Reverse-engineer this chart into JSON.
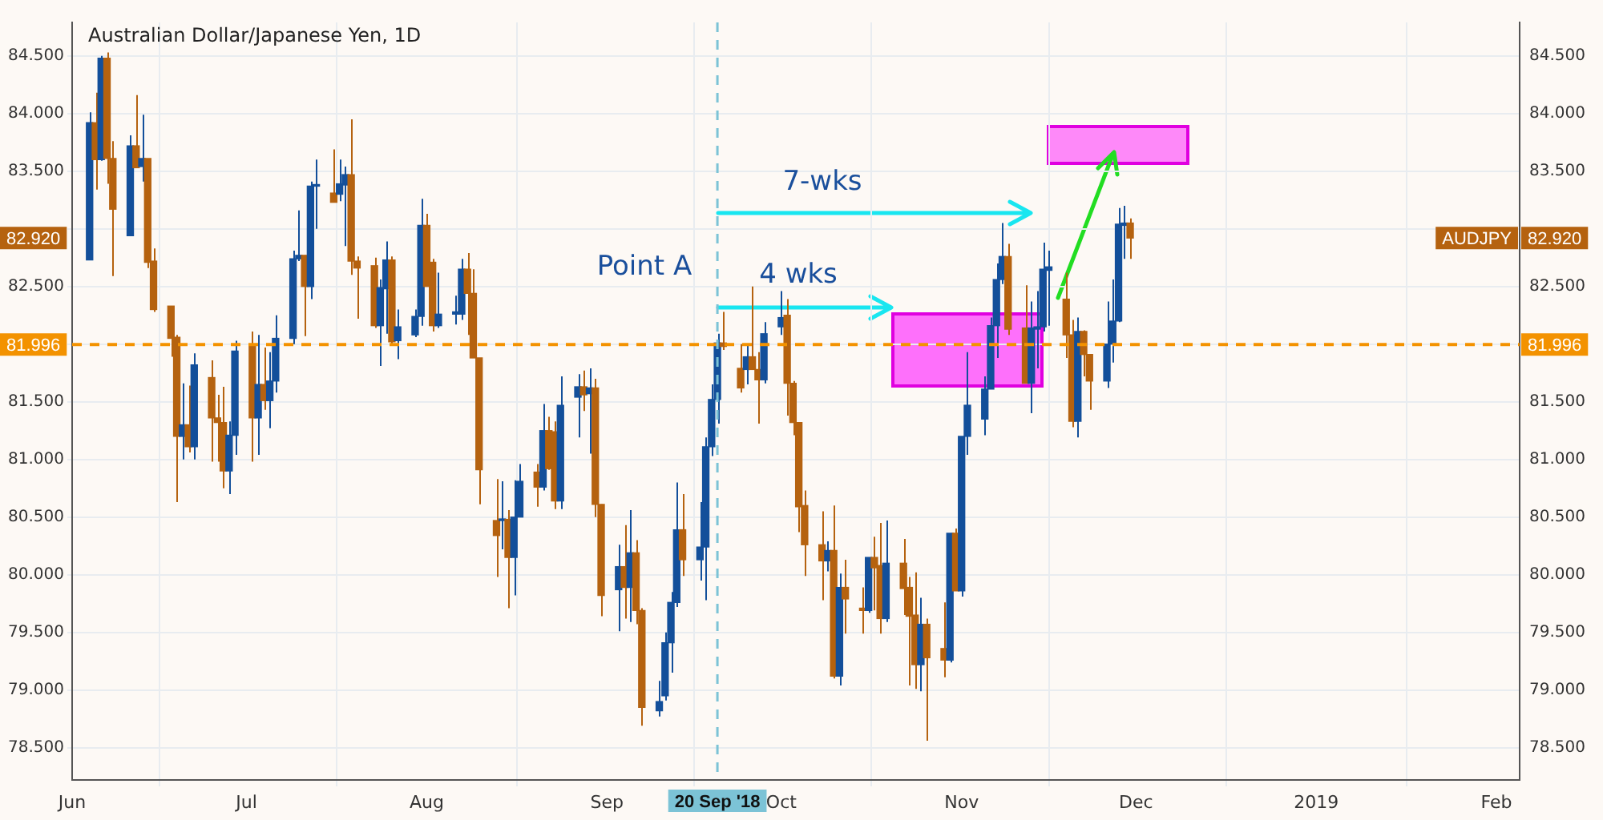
{
  "chart_data": {
    "type": "candlestick",
    "title": "Australian Dollar/Japanese Yen, 1D",
    "x": [
      "2018-06-04",
      "2018-06-05",
      "2018-06-06",
      "2018-06-07",
      "2018-06-08",
      "2018-06-11",
      "2018-06-12",
      "2018-06-13",
      "2018-06-14",
      "2018-06-15",
      "2018-06-18",
      "2018-06-19",
      "2018-06-20",
      "2018-06-21",
      "2018-06-22",
      "2018-06-25",
      "2018-06-26",
      "2018-06-27",
      "2018-06-28",
      "2018-06-29",
      "2018-07-02",
      "2018-07-03",
      "2018-07-04",
      "2018-07-05",
      "2018-07-06",
      "2018-07-09",
      "2018-07-10",
      "2018-07-11",
      "2018-07-12",
      "2018-07-13",
      "2018-07-16",
      "2018-07-17",
      "2018-07-18",
      "2018-07-19",
      "2018-07-20",
      "2018-07-23",
      "2018-07-24",
      "2018-07-25",
      "2018-07-26",
      "2018-07-27",
      "2018-07-30",
      "2018-07-31",
      "2018-08-01",
      "2018-08-02",
      "2018-08-03",
      "2018-08-06",
      "2018-08-07",
      "2018-08-08",
      "2018-08-09",
      "2018-08-10",
      "2018-08-13",
      "2018-08-14",
      "2018-08-15",
      "2018-08-16",
      "2018-08-17",
      "2018-08-20",
      "2018-08-21",
      "2018-08-22",
      "2018-08-23",
      "2018-08-24",
      "2018-08-27",
      "2018-08-28",
      "2018-08-29",
      "2018-08-30",
      "2018-08-31",
      "2018-09-03",
      "2018-09-04",
      "2018-09-05",
      "2018-09-06",
      "2018-09-07",
      "2018-09-10",
      "2018-09-11",
      "2018-09-12",
      "2018-09-13",
      "2018-09-14",
      "2018-09-17",
      "2018-09-18",
      "2018-09-19",
      "2018-09-20",
      "2018-09-21",
      "2018-09-24",
      "2018-09-25",
      "2018-09-26",
      "2018-09-27",
      "2018-09-28",
      "2018-10-01",
      "2018-10-02",
      "2018-10-03",
      "2018-10-04",
      "2018-10-05",
      "2018-10-08",
      "2018-10-09",
      "2018-10-10",
      "2018-10-11",
      "2018-10-12",
      "2018-10-15",
      "2018-10-16",
      "2018-10-17",
      "2018-10-18",
      "2018-10-19",
      "2018-10-22",
      "2018-10-23",
      "2018-10-24",
      "2018-10-25",
      "2018-10-26",
      "2018-10-29",
      "2018-10-30",
      "2018-10-31",
      "2018-11-01",
      "2018-11-02",
      "2018-11-05",
      "2018-11-06",
      "2018-11-07",
      "2018-11-08",
      "2018-11-09",
      "2018-11-12",
      "2018-11-13",
      "2018-11-14",
      "2018-11-15",
      "2018-11-16",
      "2018-11-19",
      "2018-11-20",
      "2018-11-21",
      "2018-11-22",
      "2018-11-23",
      "2018-11-26",
      "2018-11-27",
      "2018-11-28",
      "2018-11-29",
      "2018-11-30"
    ],
    "ohlc": [
      [
        82.73,
        84.01,
        82.73,
        83.92
      ],
      [
        83.92,
        84.18,
        83.34,
        83.6
      ],
      [
        83.6,
        84.5,
        83.59,
        84.48
      ],
      [
        84.48,
        84.53,
        83.39,
        83.61
      ],
      [
        83.61,
        83.76,
        82.59,
        83.17
      ],
      [
        82.94,
        83.81,
        82.94,
        83.72
      ],
      [
        83.72,
        84.16,
        83.53,
        83.53
      ],
      [
        83.54,
        83.99,
        83.41,
        83.61
      ],
      [
        83.61,
        83.61,
        82.66,
        82.71
      ],
      [
        82.72,
        82.83,
        82.28,
        82.3
      ],
      [
        82.33,
        82.33,
        81.89,
        82.05
      ],
      [
        82.06,
        82.08,
        80.63,
        81.2
      ],
      [
        81.2,
        81.66,
        81.0,
        81.3
      ],
      [
        81.3,
        81.64,
        81.06,
        81.11
      ],
      [
        81.11,
        81.92,
        81.0,
        81.82
      ],
      [
        81.71,
        81.86,
        80.98,
        81.36
      ],
      [
        81.36,
        81.56,
        80.98,
        81.32
      ],
      [
        81.32,
        81.63,
        80.75,
        80.9
      ],
      [
        80.9,
        81.33,
        80.7,
        81.21
      ],
      [
        81.21,
        82.03,
        81.04,
        81.94
      ],
      [
        81.99,
        82.11,
        80.98,
        81.36
      ],
      [
        81.36,
        82.08,
        81.04,
        81.65
      ],
      [
        81.65,
        81.97,
        81.43,
        81.51
      ],
      [
        81.51,
        81.93,
        81.27,
        81.68
      ],
      [
        81.68,
        82.25,
        81.58,
        82.05
      ],
      [
        82.05,
        82.81,
        82.0,
        82.74
      ],
      [
        82.74,
        83.16,
        82.72,
        82.77
      ],
      [
        82.77,
        82.77,
        82.07,
        82.5
      ],
      [
        82.5,
        83.41,
        82.39,
        83.37
      ],
      [
        83.37,
        83.6,
        83.0,
        83.38
      ],
      [
        83.31,
        83.69,
        83.23,
        83.23
      ],
      [
        83.3,
        83.6,
        83.24,
        83.39
      ],
      [
        83.38,
        83.54,
        82.85,
        83.47
      ],
      [
        83.47,
        83.95,
        82.6,
        82.72
      ],
      [
        82.72,
        82.76,
        82.22,
        82.66
      ],
      [
        82.68,
        82.75,
        82.14,
        82.16
      ],
      [
        82.16,
        82.56,
        81.81,
        82.49
      ],
      [
        82.48,
        82.89,
        82.09,
        82.73
      ],
      [
        82.73,
        82.76,
        82.0,
        82.02
      ],
      [
        82.03,
        82.3,
        81.87,
        82.15
      ],
      [
        82.08,
        82.3,
        82.06,
        82.24
      ],
      [
        82.24,
        83.26,
        82.16,
        83.03
      ],
      [
        83.03,
        83.13,
        82.5,
        82.5
      ],
      [
        82.71,
        82.74,
        82.11,
        82.16
      ],
      [
        82.16,
        82.62,
        82.14,
        82.26
      ],
      [
        82.26,
        82.42,
        82.17,
        82.28
      ],
      [
        82.26,
        82.74,
        82.21,
        82.65
      ],
      [
        82.65,
        82.79,
        82.08,
        82.44
      ],
      [
        82.44,
        82.65,
        81.88,
        81.88
      ],
      [
        81.88,
        81.88,
        80.61,
        80.91
      ],
      [
        80.47,
        80.83,
        79.98,
        80.34
      ],
      [
        80.47,
        80.81,
        80.22,
        80.48
      ],
      [
        80.48,
        80.56,
        79.71,
        80.15
      ],
      [
        80.15,
        80.82,
        79.82,
        80.5
      ],
      [
        80.5,
        80.96,
        80.5,
        80.81
      ],
      [
        80.89,
        80.96,
        80.59,
        80.76
      ],
      [
        80.76,
        81.48,
        80.73,
        81.25
      ],
      [
        81.25,
        81.37,
        80.91,
        80.92
      ],
      [
        81.24,
        81.33,
        80.57,
        80.64
      ],
      [
        80.64,
        81.72,
        80.57,
        81.47
      ],
      [
        81.54,
        81.74,
        81.19,
        81.63
      ],
      [
        81.63,
        81.77,
        81.42,
        81.56
      ],
      [
        81.57,
        81.79,
        81.05,
        81.62
      ],
      [
        81.62,
        81.7,
        80.5,
        80.61
      ],
      [
        80.61,
        80.61,
        79.64,
        79.82
      ],
      [
        79.87,
        80.26,
        79.51,
        80.07
      ],
      [
        80.07,
        80.43,
        79.62,
        79.89
      ],
      [
        79.89,
        80.56,
        79.59,
        80.19
      ],
      [
        80.19,
        80.3,
        79.57,
        79.69
      ],
      [
        79.69,
        79.71,
        78.69,
        78.85
      ],
      [
        78.82,
        79.08,
        78.77,
        78.9
      ],
      [
        78.95,
        79.5,
        78.91,
        79.41
      ],
      [
        79.41,
        79.85,
        79.15,
        79.76
      ],
      [
        79.76,
        80.8,
        79.72,
        80.39
      ],
      [
        80.39,
        80.7,
        79.99,
        80.13
      ],
      [
        80.13,
        80.63,
        79.95,
        80.24
      ],
      [
        80.24,
        81.19,
        79.78,
        81.11
      ],
      [
        81.11,
        81.65,
        81.03,
        81.52
      ],
      [
        81.52,
        82.09,
        81.31,
        82.01
      ],
      [
        82.01,
        82.28,
        81.95,
        81.98
      ],
      [
        81.79,
        82.0,
        81.58,
        81.62
      ],
      [
        81.78,
        82.0,
        81.65,
        81.89
      ],
      [
        81.89,
        82.5,
        81.78,
        81.78
      ],
      [
        81.78,
        81.93,
        81.31,
        81.69
      ],
      [
        81.69,
        82.19,
        81.66,
        82.09
      ],
      [
        82.15,
        82.46,
        82.08,
        82.23
      ],
      [
        82.25,
        82.39,
        81.38,
        81.66
      ],
      [
        81.66,
        81.68,
        81.21,
        81.32
      ],
      [
        81.32,
        81.32,
        80.37,
        80.59
      ],
      [
        80.6,
        80.73,
        79.99,
        80.26
      ],
      [
        80.26,
        80.55,
        79.78,
        80.12
      ],
      [
        80.12,
        80.29,
        80.03,
        80.21
      ],
      [
        80.21,
        80.6,
        79.1,
        79.12
      ],
      [
        79.12,
        80.01,
        79.04,
        79.89
      ],
      [
        79.89,
        80.13,
        79.49,
        79.79
      ],
      [
        79.71,
        79.89,
        79.49,
        79.69
      ],
      [
        79.69,
        80.15,
        79.67,
        80.15
      ],
      [
        80.15,
        80.33,
        79.69,
        80.06
      ],
      [
        80.08,
        80.45,
        79.49,
        79.62
      ],
      [
        79.62,
        80.47,
        79.59,
        80.1
      ],
      [
        80.1,
        80.31,
        79.65,
        79.88
      ],
      [
        79.89,
        79.98,
        79.04,
        79.64
      ],
      [
        79.65,
        80.02,
        79.01,
        79.22
      ],
      [
        79.22,
        79.8,
        78.99,
        79.57
      ],
      [
        79.57,
        79.62,
        78.56,
        79.28
      ],
      [
        79.36,
        79.76,
        79.11,
        79.26
      ],
      [
        79.26,
        80.36,
        79.24,
        80.36
      ],
      [
        80.36,
        80.4,
        79.86,
        79.86
      ],
      [
        79.86,
        81.2,
        79.81,
        81.2
      ],
      [
        81.2,
        81.93,
        81.04,
        81.47
      ],
      [
        81.35,
        81.72,
        81.21,
        81.61
      ],
      [
        81.61,
        82.23,
        81.61,
        82.16
      ],
      [
        82.16,
        82.7,
        81.88,
        82.56
      ],
      [
        82.56,
        83.05,
        82.52,
        82.76
      ],
      [
        82.76,
        82.87,
        82.08,
        82.13
      ],
      [
        82.14,
        82.51,
        81.66,
        81.66
      ],
      [
        81.66,
        82.37,
        81.4,
        82.14
      ],
      [
        82.13,
        82.46,
        81.79,
        82.15
      ],
      [
        82.15,
        82.88,
        82.11,
        82.65
      ],
      [
        82.64,
        82.81,
        82.16,
        82.67
      ],
      [
        82.39,
        82.62,
        81.88,
        82.08
      ],
      [
        82.08,
        82.21,
        81.28,
        81.33
      ],
      [
        81.33,
        82.23,
        81.19,
        82.11
      ],
      [
        82.11,
        82.12,
        81.72,
        81.91
      ],
      [
        81.91,
        81.91,
        81.43,
        81.68
      ],
      [
        81.68,
        82.37,
        81.62,
        82.0
      ],
      [
        82.0,
        82.56,
        81.84,
        82.2
      ],
      [
        82.2,
        83.18,
        82.19,
        83.04
      ],
      [
        83.03,
        83.2,
        82.74,
        83.05
      ],
      [
        83.05,
        83.09,
        82.74,
        82.92
      ]
    ],
    "colors": [
      "#134f9a",
      "#b5620f",
      "#134f9a",
      "#b5620f",
      "#b5620f",
      "#134f9a",
      "#b5620f",
      "#134f9a",
      "#b5620f",
      "#b5620f",
      "#b5620f",
      "#b5620f",
      "#134f9a",
      "#b5620f",
      "#134f9a",
      "#b5620f",
      "#b5620f",
      "#b5620f",
      "#134f9a",
      "#134f9a",
      "#b5620f",
      "#134f9a",
      "#b5620f",
      "#134f9a",
      "#134f9a",
      "#134f9a",
      "#134f9a",
      "#b5620f",
      "#134f9a",
      "#134f9a",
      "#b5620f",
      "#134f9a",
      "#134f9a",
      "#b5620f",
      "#b5620f",
      "#b5620f",
      "#134f9a",
      "#134f9a",
      "#b5620f",
      "#134f9a",
      "#134f9a",
      "#134f9a",
      "#b5620f",
      "#b5620f",
      "#134f9a",
      "#134f9a",
      "#134f9a",
      "#b5620f",
      "#b5620f",
      "#b5620f",
      "#b5620f",
      "#134f9a",
      "#b5620f",
      "#134f9a",
      "#134f9a",
      "#b5620f",
      "#134f9a",
      "#b5620f",
      "#b5620f",
      "#134f9a",
      "#134f9a",
      "#b5620f",
      "#134f9a",
      "#b5620f",
      "#b5620f",
      "#134f9a",
      "#b5620f",
      "#134f9a",
      "#b5620f",
      "#b5620f",
      "#134f9a",
      "#134f9a",
      "#134f9a",
      "#134f9a",
      "#b5620f",
      "#134f9a",
      "#134f9a",
      "#134f9a",
      "#134f9a",
      "#b5620f",
      "#b5620f",
      "#134f9a",
      "#b5620f",
      "#b5620f",
      "#134f9a",
      "#134f9a",
      "#b5620f",
      "#b5620f",
      "#b5620f",
      "#b5620f",
      "#b5620f",
      "#134f9a",
      "#b5620f",
      "#134f9a",
      "#b5620f",
      "#b5620f",
      "#134f9a",
      "#b5620f",
      "#b5620f",
      "#134f9a",
      "#b5620f",
      "#b5620f",
      "#b5620f",
      "#134f9a",
      "#b5620f",
      "#b5620f",
      "#134f9a",
      "#b5620f",
      "#134f9a",
      "#134f9a",
      "#134f9a",
      "#134f9a",
      "#134f9a",
      "#134f9a",
      "#b5620f",
      "#b5620f",
      "#134f9a",
      "#134f9a",
      "#134f9a",
      "#134f9a",
      "#b5620f",
      "#b5620f",
      "#134f9a",
      "#b5620f",
      "#b5620f",
      "#134f9a",
      "#134f9a",
      "#134f9a",
      "#134f9a",
      "#b5620f"
    ],
    "xlim": [
      "2018-06-01",
      "2019-02-05"
    ],
    "xticks": [
      {
        "value": "2018-06-01",
        "label": "Jun"
      },
      {
        "value": "2018-07-01",
        "label": "Jul"
      },
      {
        "value": "2018-08-01",
        "label": "Aug"
      },
      {
        "value": "2018-09-01",
        "label": "Sep"
      },
      {
        "value": "2018-10-01",
        "label": "Oct"
      },
      {
        "value": "2018-11-01",
        "label": "Nov"
      },
      {
        "value": "2018-12-01",
        "label": "Dec"
      },
      {
        "value": "2019-01-01",
        "label": "2019"
      },
      {
        "value": "2019-02-01",
        "label": "Feb"
      }
    ],
    "ylim": [
      78.22,
      84.79
    ],
    "yticks": [
      {
        "value": 78.5,
        "label": "78.500"
      },
      {
        "value": 79,
        "label": "79.000"
      },
      {
        "value": 79.5,
        "label": "79.500"
      },
      {
        "value": 80,
        "label": "80.000"
      },
      {
        "value": 80.5,
        "label": "80.500"
      },
      {
        "value": 81,
        "label": "81.000"
      },
      {
        "value": 81.5,
        "label": "81.500"
      },
      {
        "value": 82,
        "label": null
      },
      {
        "value": 82.5,
        "label": "82.500"
      },
      {
        "value": 83,
        "label": null
      },
      {
        "value": 83.5,
        "label": "83.500"
      },
      {
        "value": 84,
        "label": "84.000"
      },
      {
        "value": 84.5,
        "label": "84.500"
      }
    ],
    "y2lim": [
      78.22,
      84.79
    ],
    "y2ticks": [
      {
        "value": 78.5,
        "label": "78.500"
      },
      {
        "value": 79,
        "label": "79.000"
      },
      {
        "value": 79.5,
        "label": "79.500"
      },
      {
        "value": 80,
        "label": "80.000"
      },
      {
        "value": 80.5,
        "label": "80.500"
      },
      {
        "value": 81,
        "label": "81.000"
      },
      {
        "value": 81.5,
        "label": "81.500"
      },
      {
        "value": 82,
        "label": null
      },
      {
        "value": 82.5,
        "label": "82.500"
      },
      {
        "value": 83,
        "label": null
      },
      {
        "value": 83.5,
        "label": "83.500"
      },
      {
        "value": 84,
        "label": "84.000"
      },
      {
        "value": 84.5,
        "label": "84.500"
      }
    ],
    "ref_lines": [
      {
        "axis": "y",
        "value": 81.996,
        "label": "81.996",
        "color": "#f39200",
        "line_style": "dashed"
      },
      {
        "axis": "x",
        "value": "2018-09-20",
        "label": "20 Sep '18",
        "color": "#7cc3d6",
        "line_style": "dashed"
      }
    ],
    "annotations": [
      "Point A",
      "4 wks",
      "7-wks",
      "82.920",
      "AUDJPY"
    ],
    "grid": true,
    "legend": false
  }
}
